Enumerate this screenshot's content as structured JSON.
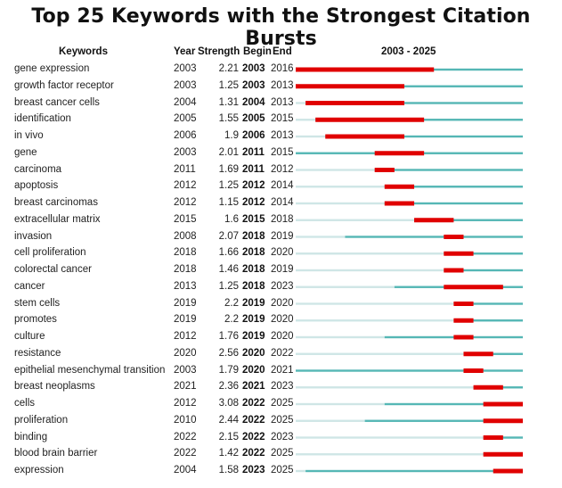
{
  "chart_data": {
    "type": "table",
    "title": "Top 25 Keywords with the Strongest Citation Bursts",
    "headers": {
      "keywords": "Keywords",
      "year": "Year",
      "strength": "Strength",
      "begin": "Begin",
      "end": "End",
      "range": "2003 - 2025"
    },
    "timeline": {
      "start": 2003,
      "end": 2025
    },
    "colors": {
      "burst": "#e00000",
      "active": "#55b7b5",
      "inactive": "#cfe6e6"
    },
    "rows": [
      {
        "keyword": "gene expression",
        "year": 2003,
        "strength": "2.21",
        "begin": 2003,
        "end": 2016
      },
      {
        "keyword": "growth factor receptor",
        "year": 2003,
        "strength": "1.25",
        "begin": 2003,
        "end": 2013
      },
      {
        "keyword": "breast cancer cells",
        "year": 2004,
        "strength": "1.31",
        "begin": 2004,
        "end": 2013
      },
      {
        "keyword": "identification",
        "year": 2005,
        "strength": "1.55",
        "begin": 2005,
        "end": 2015
      },
      {
        "keyword": "in vivo",
        "year": 2006,
        "strength": "1.9",
        "begin": 2006,
        "end": 2013
      },
      {
        "keyword": "gene",
        "year": 2003,
        "strength": "2.01",
        "begin": 2011,
        "end": 2015
      },
      {
        "keyword": "carcinoma",
        "year": 2011,
        "strength": "1.69",
        "begin": 2011,
        "end": 2012
      },
      {
        "keyword": "apoptosis",
        "year": 2012,
        "strength": "1.25",
        "begin": 2012,
        "end": 2014
      },
      {
        "keyword": "breast carcinomas",
        "year": 2012,
        "strength": "1.15",
        "begin": 2012,
        "end": 2014
      },
      {
        "keyword": "extracellular matrix",
        "year": 2015,
        "strength": "1.6",
        "begin": 2015,
        "end": 2018
      },
      {
        "keyword": "invasion",
        "year": 2008,
        "strength": "2.07",
        "begin": 2018,
        "end": 2019
      },
      {
        "keyword": "cell proliferation",
        "year": 2018,
        "strength": "1.66",
        "begin": 2018,
        "end": 2020
      },
      {
        "keyword": "colorectal cancer",
        "year": 2018,
        "strength": "1.46",
        "begin": 2018,
        "end": 2019
      },
      {
        "keyword": "cancer",
        "year": 2013,
        "strength": "1.25",
        "begin": 2018,
        "end": 2023
      },
      {
        "keyword": "stem cells",
        "year": 2019,
        "strength": "2.2",
        "begin": 2019,
        "end": 2020
      },
      {
        "keyword": "promotes",
        "year": 2019,
        "strength": "2.2",
        "begin": 2019,
        "end": 2020
      },
      {
        "keyword": "culture",
        "year": 2012,
        "strength": "1.76",
        "begin": 2019,
        "end": 2020
      },
      {
        "keyword": "resistance",
        "year": 2020,
        "strength": "2.56",
        "begin": 2020,
        "end": 2022
      },
      {
        "keyword": "epithelial mesenchymal transition",
        "year": 2003,
        "strength": "1.79",
        "begin": 2020,
        "end": 2021
      },
      {
        "keyword": "breast neoplasms",
        "year": 2021,
        "strength": "2.36",
        "begin": 2021,
        "end": 2023
      },
      {
        "keyword": "cells",
        "year": 2012,
        "strength": "3.08",
        "begin": 2022,
        "end": 2025
      },
      {
        "keyword": "proliferation",
        "year": 2010,
        "strength": "2.44",
        "begin": 2022,
        "end": 2025
      },
      {
        "keyword": "binding",
        "year": 2022,
        "strength": "2.15",
        "begin": 2022,
        "end": 2023
      },
      {
        "keyword": "blood brain barrier",
        "year": 2022,
        "strength": "1.42",
        "begin": 2022,
        "end": 2025
      },
      {
        "keyword": "expression",
        "year": 2004,
        "strength": "1.58",
        "begin": 2023,
        "end": 2025
      }
    ]
  }
}
